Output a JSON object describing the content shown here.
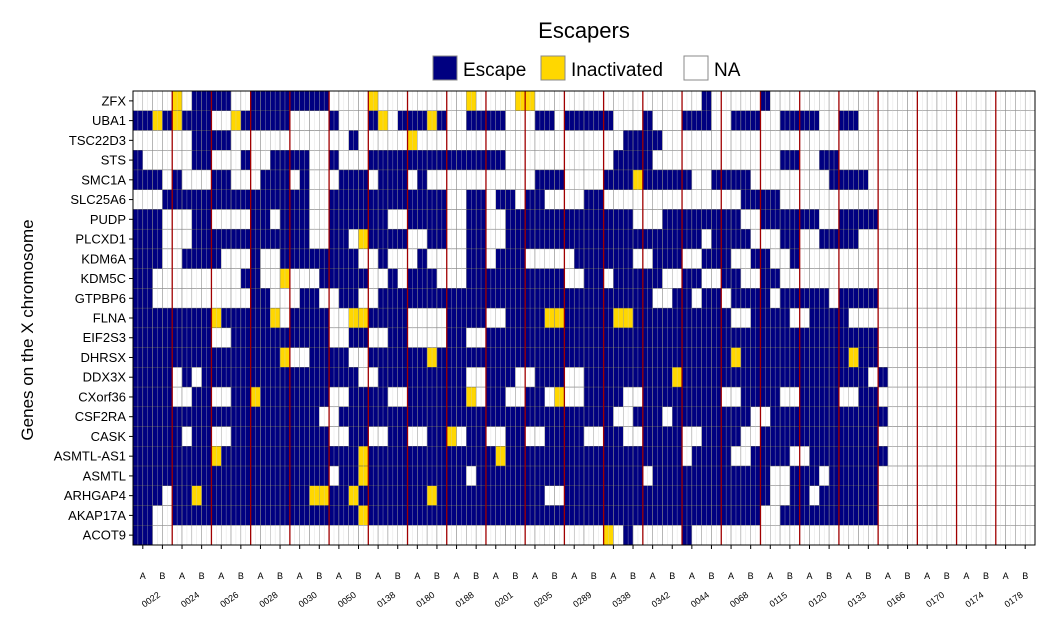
{
  "chart_data": {
    "type": "heatmap",
    "title": "Escapers",
    "ylabel": "Genes on the X chromosome",
    "xlabel": "",
    "legend": {
      "placement": "top",
      "entries": [
        {
          "key": "E",
          "label": "Escape",
          "color": "#000080"
        },
        {
          "key": "I",
          "label": "Inactivated",
          "color": "#FFD700"
        },
        {
          "key": "N",
          "label": "NA",
          "color": "#FFFFFF"
        }
      ]
    },
    "cell_legend_codes": "E = Escape, I = Inactivated, . = NA; each row string lists 46 cells = 23 patients x 2 samples (A,B) x 4 cells... condensed to 2 cells per sample",
    "patients": [
      "0022",
      "0024",
      "0026",
      "0028",
      "0030",
      "0050",
      "0138",
      "0180",
      "0188",
      "0201",
      "0205",
      "0289",
      "0338",
      "0342",
      "0044",
      "0068",
      "0115",
      "0120",
      "0133",
      "0166",
      "0170",
      "0174",
      "0178"
    ],
    "samples": [
      "A",
      "B"
    ],
    "genes": [
      "ZFX",
      "UBA1",
      "TSC22D3",
      "STS",
      "SMC1A",
      "SLC25A6",
      "PUDP",
      "PLCXD1",
      "KDM6A",
      "KDM5C",
      "GTPBP6",
      "FLNA",
      "EIF2S3",
      "DHRSX",
      "DDX3X",
      "CXorf36",
      "CSF2RA",
      "CASK",
      "ASMTL-AS1",
      "ASMTL",
      "ARHGAP4",
      "AKAP17A",
      "ACOT9"
    ],
    "cells": {
      "ZFX": "....I.EEEE..EEEEEEEE....I.........I....II.................E.....E...........",
      "UBA1": "EEIEIEEE..IEEEEE....E...EI.EEEIE..EEEE...EE.EEEEE...E...EEE..EEE..EEEE..EE..",
      "TSC22D3": "......EEEE............E.....I.....................EEEE......................",
      "STS": "E.....EE...E..EEEE..E...EEEEEEEEEEEEEE...........EEEE.............EE..EE....",
      "SMC1A": "EEE.E...EE...EEE.E...EEE.EEE.E...........EEE....EEEIEEEEE..EEEE........EEEE",
      "SLC25A6": "...EEEEEEEEEEEEEEE..EEEEEEEEEEEE..EE.EE.EE....EE..............EEEE..........",
      "PUDP": "EEE...EE....EE.EEE..EEEEEE..EEEE..EE..EEEEEEEEEEEEE...EEEEEEEE..EEEEEE..EEEE",
      "PLCXD1": "EEE...EEEEEEEEEEEE..EE.IEEEE..EE..EE..EEEEEEEEEEEEEEEEEEEE.EEEE...EE..EEEE..",
      "KDM6A": "EEE..EEEE...E..EEEEEEEE..E...E....EE.EEE.....EEEEEE..EEE..EEE..EE..E........",
      "KDM5C": "EE.........EE..I...EEEEE..E.EEE...EEEEEEEEEE..EE.EEEEE..EE..EE..EE........",
      "GTPBP6": "EE..........EE...EE..EE..EEEEEEEEEEEEEEEEEEEEEEEEEEEE..EE.EE.EEEE.EEEEE.EEEE",
      "FLNA": "EEEEEEEEIEEEEEI.EEEE..IIEEEE....EEEE..EEEEIIEEEEEIIEEEEEEEEEE..EEEE..EEEE",
      "EIF2S3": "EEEEEEEE..EEEEEEEEEE..EE..EE....EE..EEEEEEEEEEEEEEEEEEEEEEEEEEEEEEEEEEEEEEEE",
      "DHRSX": "EEEEEEEEEEEEEEEI..EEEE..EEEEEEIEEEEEEEEEEEEEEEEEEEEEEEEEEEEEEIEEEEEEEEEEEIEE",
      "DDX3X": "EEEE.E.EEEEEEEEEEEEEEEE..EEEEEEEEE..EEE..EEE..EEEEEEEEEIEEEEEEEEEEEEEEEEEEE.E",
      "CXorf36": "EEEE..EE..EEIEEEEEEE..EEEE..EEEEEEI.EE..EE.I..EEEE..EEEEEEEE..EEEE..EEEE..EE",
      "CSF2RA": "EEEEEEEEEEEEEEEEEEE..EEEEEEEEEEEEEEEEEEEEEEEEEEEE..EEE.EEEEEEEE..EEEEEEEEEEEE",
      "CASK": "EEEEE.EE..EEEEEEEEEE..EE..EE..EEI.EE..EE..EEEE..EE..EEEE..EEEE..EEEEEEEEEEEE",
      "ASMTL-AS1": "EEEEEEEEIEEEEEEEEEEEEEEIEEEEEEEEEEEEEIEEEEEEEEEEEEEEEEEE.EEEE..EEEE..EEEEEEEE",
      "ASMTL": "EEEEEEEEEEEEEEEEEEEE.EEIEEEEEEEEEE.EEEEEEEEEEEEEEEEE.EEEEEEEEEEEE..EEE.EEEEE",
      "ARHGAP4": "EEE.EEIEEEEEEEEEEEIIEEIEEEEEEEIEEEEEEEEEEE..EEEEEEEEEEEEEEEEEEEEE..EE.EEEEEE",
      "AKAP17A": "EE..EEEEEEEEEEEEEEEEEEEIEEEEEEEEEEEEEEEEEEEEEEEEEEEEEEEEEEEEEEEE..EEEEEEEEEE",
      "ACOT9": "EE..............................................I.E.....E......................."
    }
  }
}
